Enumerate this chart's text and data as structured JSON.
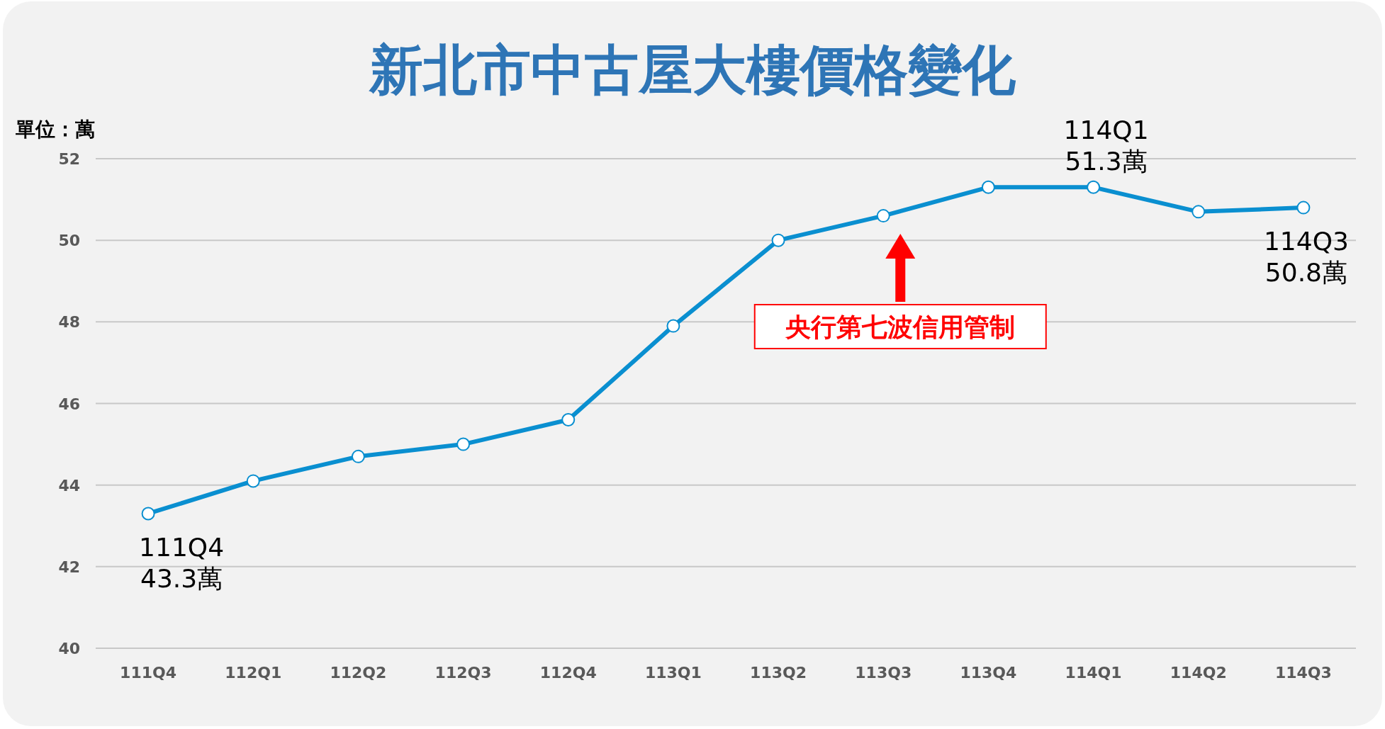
{
  "chart_data": {
    "type": "line",
    "title": "新北市中古屋大樓價格變化",
    "ylabel": "單位：萬",
    "categories": [
      "111Q4",
      "112Q1",
      "112Q2",
      "112Q3",
      "112Q4",
      "113Q1",
      "113Q2",
      "113Q3",
      "113Q4",
      "114Q1",
      "114Q2",
      "114Q3"
    ],
    "series": [
      {
        "color": "#0a8fd0",
        "values": [
          43.3,
          44.1,
          44.7,
          45.0,
          45.6,
          47.9,
          50.0,
          50.6,
          51.3,
          51.3,
          50.7,
          50.8
        ]
      }
    ],
    "ylim": [
      40,
      52
    ],
    "yticks": [
      40,
      42,
      44,
      46,
      48,
      50,
      52
    ],
    "grid": "y",
    "marker": "circle",
    "line_style": "solid",
    "annotations": [
      {
        "text": "111Q4\n43.3萬",
        "x": "111Q4",
        "y": 43.3
      },
      {
        "text": "114Q1\n51.3萬",
        "x": "114Q1",
        "y": 51.3
      },
      {
        "text": "114Q3\n50.8萬",
        "x": "114Q3",
        "y": 50.8
      },
      "央行第七波信用管制"
    ]
  }
}
